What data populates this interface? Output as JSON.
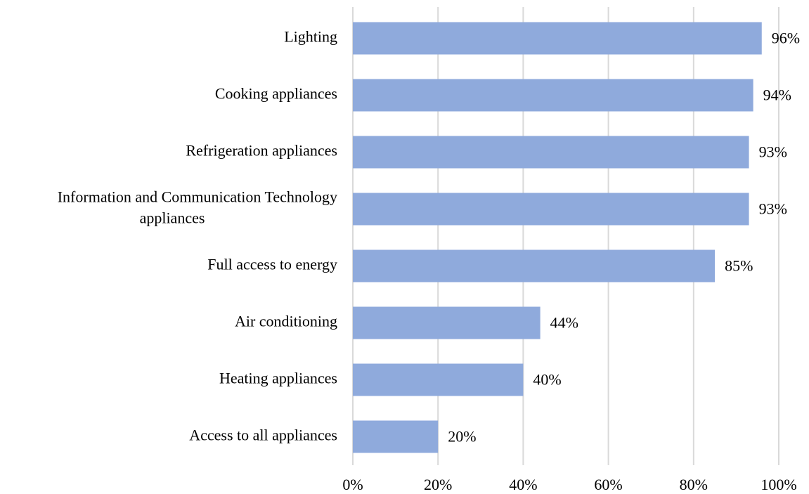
{
  "chart_data": {
    "type": "bar",
    "orientation": "horizontal",
    "categories": [
      "Lighting",
      "Cooking appliances",
      "Refrigeration appliances",
      "Information and Communication Technology appliances",
      "Full access to energy",
      "Air conditioning",
      "Heating appliances",
      "Access to all appliances"
    ],
    "values": [
      96,
      94,
      93,
      93,
      85,
      44,
      40,
      20
    ],
    "value_labels": [
      "96%",
      "94%",
      "93%",
      "93%",
      "85%",
      "44%",
      "40%",
      "20%"
    ],
    "color": "#8faadc",
    "xlim": [
      0,
      100
    ],
    "xticks": [
      {
        "value": 0,
        "label": "0%"
      },
      {
        "value": 20,
        "label": "20%"
      },
      {
        "value": 40,
        "label": "40%"
      },
      {
        "value": 60,
        "label": "60%"
      },
      {
        "value": 80,
        "label": "80%"
      },
      {
        "value": 100,
        "label": "100%"
      }
    ],
    "grid": true
  }
}
